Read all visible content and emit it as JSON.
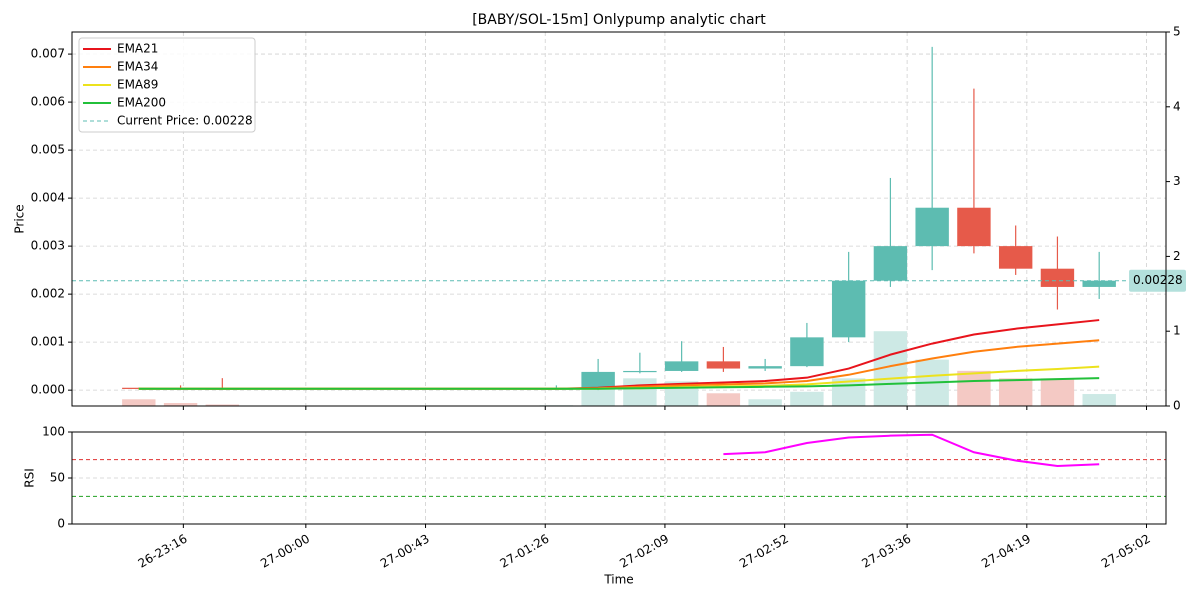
{
  "chart_data": [
    {
      "type": "candlestick",
      "title": "[BABY/SOL-15m] Onlypump analytic chart",
      "ylabel": "Price",
      "x": [
        "26-23:00",
        "26-23:15",
        "26-23:30",
        "27-01:30",
        "27-01:45",
        "27-02:00",
        "27-02:15",
        "27-02:30",
        "27-02:45",
        "27-03:00",
        "27-03:15",
        "27-03:30",
        "27-03:45",
        "27-04:00",
        "27-04:15",
        "27-04:30",
        "27-04:45"
      ],
      "open": [
        5e-05,
        4e-05,
        3e-05,
        2e-05,
        2e-05,
        0.00038,
        0.0004,
        0.0006,
        0.00045,
        0.0005,
        0.0011,
        0.00228,
        0.003,
        0.0038,
        0.003,
        0.00253,
        0.00215
      ],
      "high": [
        5e-05,
        0.0001,
        0.00025,
        0.0001,
        0.00065,
        0.00078,
        0.00102,
        0.0009,
        0.00065,
        0.0014,
        0.00288,
        0.00442,
        0.00715,
        0.00628,
        0.00343,
        0.0032,
        0.00288
      ],
      "low": [
        3e-05,
        2e-05,
        1e-05,
        2e-05,
        0.0,
        0.00035,
        0.00038,
        0.00038,
        0.0004,
        0.00048,
        0.001,
        0.00215,
        0.0025,
        0.00285,
        0.0024,
        0.00168,
        0.0019
      ],
      "close": [
        4e-05,
        3e-05,
        2e-05,
        3e-05,
        0.00038,
        0.0004,
        0.0006,
        0.00045,
        0.0005,
        0.0011,
        0.00228,
        0.003,
        0.0038,
        0.003,
        0.00253,
        0.00215,
        0.00228
      ],
      "up_color": "#5dbcb1",
      "down_color": "#e65a4a",
      "volume": {
        "axis": "y2",
        "values": [
          0.09,
          0.04,
          0.02,
          0.01,
          0.44,
          0.37,
          0.33,
          0.17,
          0.09,
          0.19,
          0.37,
          1.0,
          0.62,
          0.47,
          0.37,
          0.37,
          0.16
        ],
        "up_color": "#cde9e5",
        "down_color": "#f4c9c4"
      },
      "series": [
        {
          "name": "EMA21",
          "color": "#e8141c",
          "values": [
            3e-05,
            3e-05,
            3e-05,
            3e-05,
            5e-05,
            0.0001,
            0.00013,
            0.00016,
            0.00019,
            0.00026,
            0.00045,
            0.00074,
            0.00097,
            0.00116,
            0.00128,
            0.00137,
            0.00146
          ]
        },
        {
          "name": "EMA34",
          "color": "#ff7f0e",
          "values": [
            3e-05,
            3e-05,
            3e-05,
            3e-05,
            4e-05,
            7e-05,
            0.0001,
            0.00012,
            0.00014,
            0.00019,
            0.00032,
            0.0005,
            0.00066,
            0.0008,
            0.0009,
            0.00097,
            0.00104
          ]
        },
        {
          "name": "EMA89",
          "color": "#ece21c",
          "values": [
            3e-05,
            3e-05,
            3e-05,
            3e-05,
            3e-05,
            4e-05,
            6e-05,
            8e-05,
            9e-05,
            0.00012,
            0.00018,
            0.00024,
            0.0003,
            0.00035,
            0.0004,
            0.00044,
            0.00049
          ]
        },
        {
          "name": "EMA200",
          "color": "#22c03a",
          "values": [
            3e-05,
            3e-05,
            3e-05,
            3e-05,
            3e-05,
            4e-05,
            5e-05,
            6e-05,
            7e-05,
            8e-05,
            0.0001,
            0.00013,
            0.00016,
            0.00019,
            0.00021,
            0.00023,
            0.00025
          ]
        }
      ],
      "current_price": {
        "name": "Current Price: 0.00228",
        "value": 0.00228,
        "color": "#5cbcb3",
        "badge_color": "#b3e0dc"
      },
      "xlim": [
        "26-22:36",
        "27-05:09"
      ],
      "xticks": [
        "26-23:16",
        "27-00:00",
        "27-00:43",
        "27-01:26",
        "27-02:09",
        "27-02:52",
        "27-03:36",
        "27-04:19",
        "27-05:02"
      ],
      "ylim": [
        -0.00033,
        0.00746
      ],
      "yticks": [
        {
          "value": 0,
          "label": "0.000"
        },
        {
          "value": 0.001,
          "label": "0.001"
        },
        {
          "value": 0.002,
          "label": "0.002"
        },
        {
          "value": 0.003,
          "label": "0.003"
        },
        {
          "value": 0.004,
          "label": "0.004"
        },
        {
          "value": 0.005,
          "label": "0.005"
        },
        {
          "value": 0.006,
          "label": "0.006"
        },
        {
          "value": 0.007,
          "label": "0.007"
        }
      ],
      "y2lim": [
        0,
        5
      ],
      "y2ticks": [
        0,
        1,
        2,
        3,
        4,
        5
      ],
      "grid": true,
      "legend": "upper left"
    },
    {
      "type": "line",
      "ylabel": "RSI",
      "xlabel": "Time",
      "x": [
        "26-23:00",
        "26-23:15",
        "26-23:30",
        "27-01:30",
        "27-01:45",
        "27-02:00",
        "27-02:15",
        "27-02:30",
        "27-02:45",
        "27-03:00",
        "27-03:15",
        "27-03:30",
        "27-03:45",
        "27-04:00",
        "27-04:15",
        "27-04:30",
        "27-04:45"
      ],
      "values": [
        null,
        null,
        null,
        null,
        null,
        null,
        null,
        76,
        78,
        88,
        94,
        96,
        97,
        78,
        69,
        63,
        65
      ],
      "color": "#ff00ff",
      "hlines": [
        {
          "value": 70,
          "color": "#e03030"
        },
        {
          "value": 30,
          "color": "#20a020"
        }
      ],
      "xlim": [
        "26-22:36",
        "27-05:09"
      ],
      "xticks": [
        "26-23:16",
        "27-00:00",
        "27-00:43",
        "27-01:26",
        "27-02:09",
        "27-02:52",
        "27-03:36",
        "27-04:19",
        "27-05:02"
      ],
      "ylim": [
        0,
        100
      ],
      "yticks": [
        0,
        50,
        100
      ],
      "grid": true
    }
  ]
}
